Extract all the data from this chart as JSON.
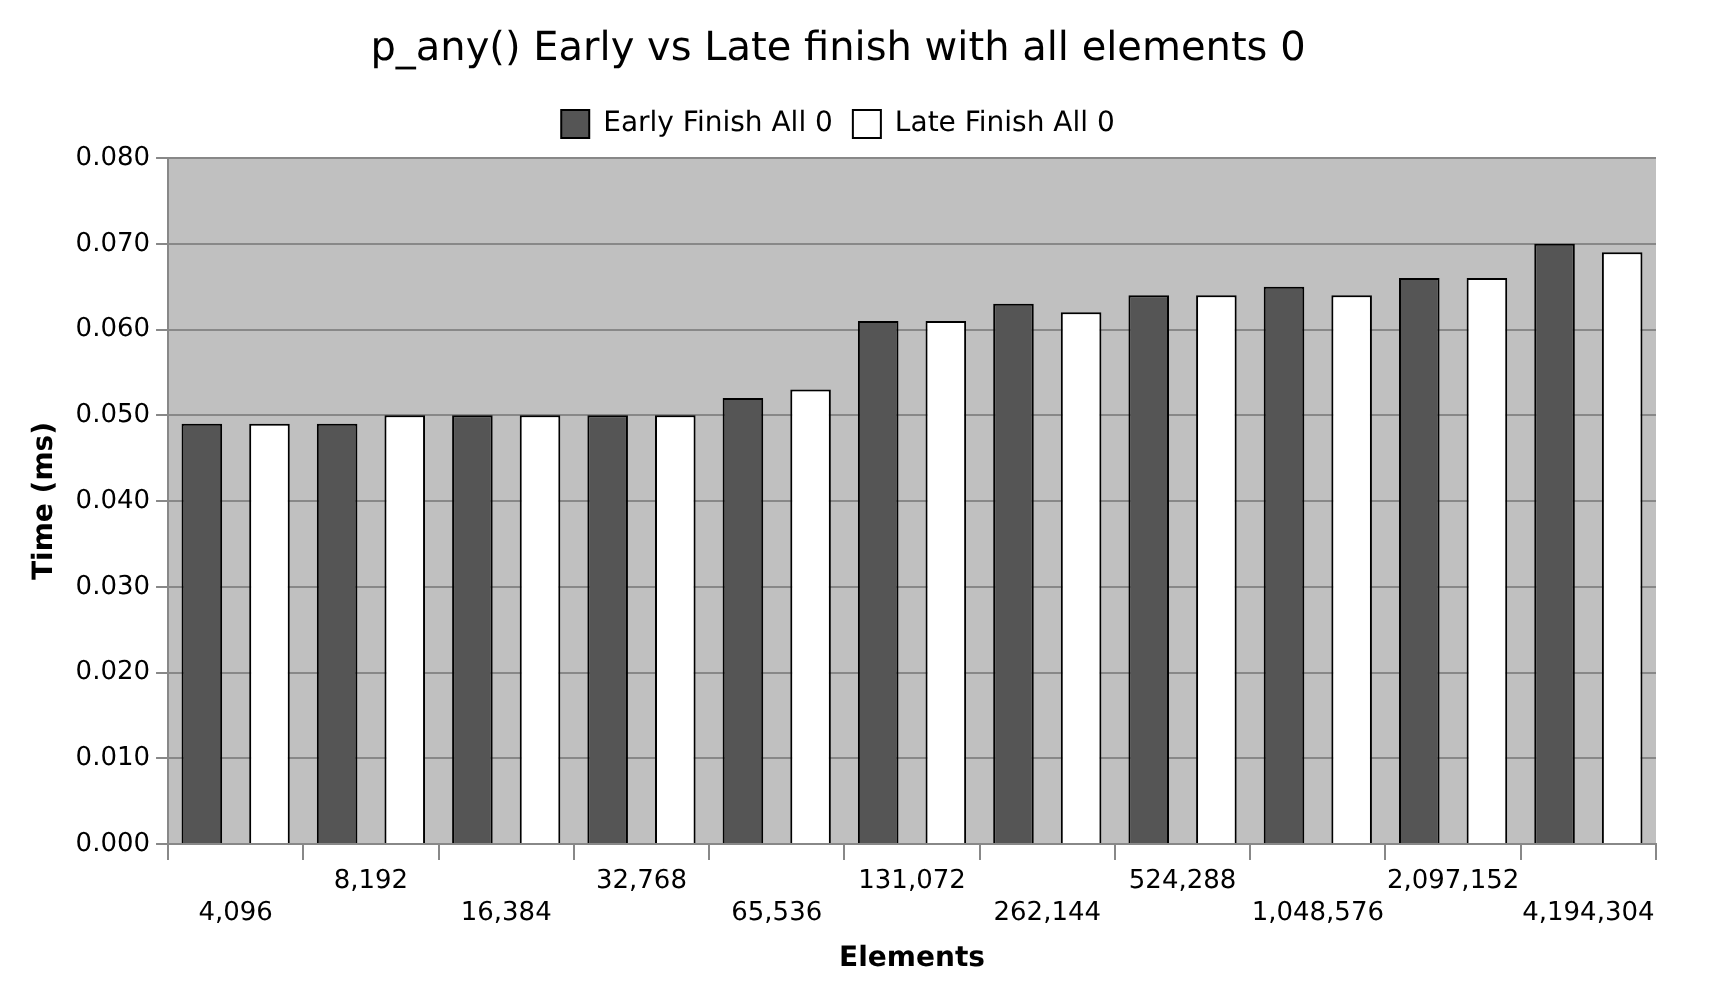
{
  "chart_data": {
    "type": "bar",
    "title": "p_any() Early vs Late finish with all elements 0",
    "xlabel": "Elements",
    "ylabel": "Time (ms)",
    "categories": [
      "4,096",
      "8,192",
      "16,384",
      "32,768",
      "65,536",
      "131,072",
      "262,144",
      "524,288",
      "1,048,576",
      "2,097,152",
      "4,194,304"
    ],
    "series": [
      {
        "name": "Early Finish All 0",
        "color": "#555555",
        "values": [
          0.049,
          0.049,
          0.05,
          0.05,
          0.052,
          0.061,
          0.063,
          0.064,
          0.065,
          0.066,
          0.07
        ]
      },
      {
        "name": "Late Finish All 0",
        "color": "#ffffff",
        "values": [
          0.049,
          0.05,
          0.05,
          0.05,
          0.053,
          0.061,
          0.062,
          0.064,
          0.064,
          0.066,
          0.069
        ]
      }
    ],
    "ylim": [
      0,
      0.08
    ],
    "yticks": [
      {
        "value": 0,
        "label": "0.000"
      },
      {
        "value": 0.01,
        "label": "0.010"
      },
      {
        "value": 0.02,
        "label": "0.020"
      },
      {
        "value": 0.03,
        "label": "0.030"
      },
      {
        "value": 0.04,
        "label": "0.040"
      },
      {
        "value": 0.05,
        "label": "0.050"
      },
      {
        "value": 0.06,
        "label": "0.060"
      },
      {
        "value": 0.07,
        "label": "0.070"
      },
      {
        "value": 0.08,
        "label": "0.080"
      }
    ],
    "grid": "y",
    "legend": "top"
  }
}
